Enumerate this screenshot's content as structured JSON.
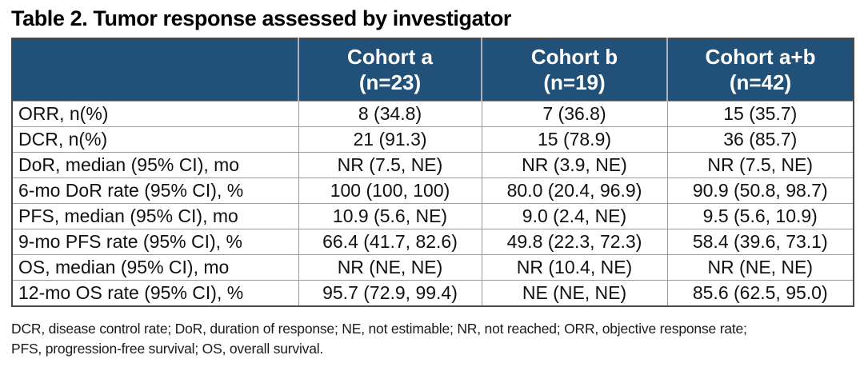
{
  "title": "Table 2. Tumor response assessed by investigator",
  "table": {
    "columns": [
      {
        "label_line1": "Cohort a",
        "label_line2": "(n=23)"
      },
      {
        "label_line1": "Cohort b",
        "label_line2": "(n=19)"
      },
      {
        "label_line1": "Cohort a+b",
        "label_line2": "(n=42)"
      }
    ],
    "rows": [
      {
        "label": "ORR, n(%)",
        "values": [
          "8 (34.8)",
          "7 (36.8)",
          "15 (35.7)"
        ]
      },
      {
        "label": "DCR, n(%)",
        "values": [
          "21 (91.3)",
          "15 (78.9)",
          "36 (85.7)"
        ]
      },
      {
        "label": "DoR, median (95% CI), mo",
        "values": [
          "NR (7.5, NE)",
          "NR (3.9, NE)",
          "NR (7.5, NE)"
        ]
      },
      {
        "label": "6-mo DoR rate (95% CI), %",
        "values": [
          "100 (100, 100)",
          "80.0 (20.4, 96.9)",
          "90.9 (50.8, 98.7)"
        ]
      },
      {
        "label": "PFS, median (95% CI), mo",
        "values": [
          "10.9 (5.6, NE)",
          "9.0 (2.4, NE)",
          "9.5 (5.6, 10.9)"
        ]
      },
      {
        "label": "9-mo PFS rate (95% CI), %",
        "values": [
          "66.4 (41.7, 82.6)",
          "49.8 (22.3, 72.3)",
          "58.4 (39.6, 73.1)"
        ]
      },
      {
        "label": "OS, median (95% CI), mo",
        "values": [
          "NR (NE, NE)",
          "NR (10.4, NE)",
          "NR (NE, NE)"
        ]
      },
      {
        "label": "12-mo OS rate (95% CI), %",
        "values": [
          "95.7 (72.9, 99.4)",
          "NE (NE, NE)",
          "85.6 (62.5, 95.0)"
        ]
      }
    ]
  },
  "footnote": {
    "line1": "DCR, disease control rate; DoR, duration of response; NE, not estimable; NR, not reached; ORR, objective response rate;",
    "line2": "PFS, progression-free survival; OS, overall survival."
  },
  "colors": {
    "header_bg": "#215078",
    "header_text": "#FFFFFF",
    "body_grid": "#9A9A9A",
    "outer_border": "#4A4A4A"
  }
}
